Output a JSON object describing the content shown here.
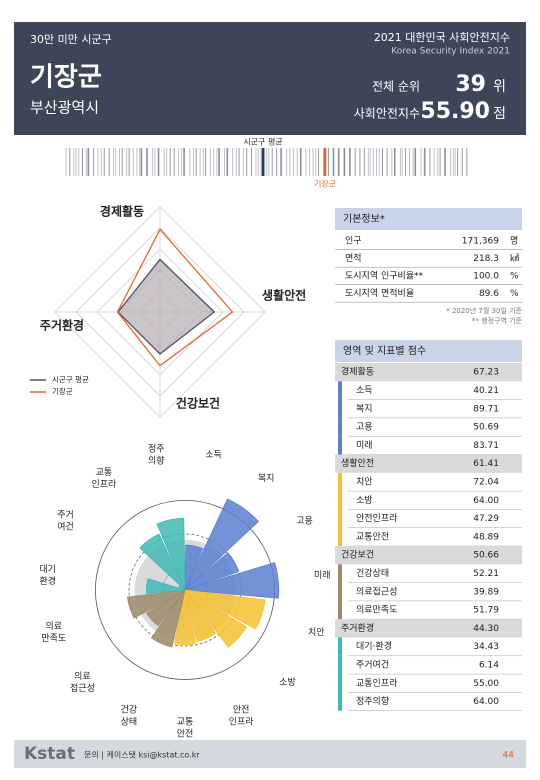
{
  "header": {
    "category": "30만 미만 시군구",
    "title": "2021 대한민국 사회안전지수",
    "subtitle": "Korea Security Index 2021",
    "region": "기장군",
    "province": "부산광역시",
    "rank_label": "전체 순위",
    "rank": "39",
    "rank_unit": "위",
    "score_label": "사회안전지수",
    "score": "55.90",
    "score_unit": "점"
  },
  "distribution": {
    "average_label": "시군구 평균",
    "region_label": "기장군"
  },
  "chart_data": [
    {
      "type": "radar",
      "categories": [
        "경제활동",
        "생활안전",
        "건강보건",
        "주거환경"
      ],
      "rlim": [
        20,
        80
      ],
      "series": [
        {
          "name": "시군구 평균",
          "color": "#4a5162",
          "values": [
            50,
            51,
            44,
            44
          ]
        },
        {
          "name": "기장군",
          "color": "#e8622a",
          "values": [
            67.23,
            61.41,
            50.66,
            44.3
          ]
        }
      ]
    },
    {
      "type": "rose",
      "rlim": [
        0,
        100
      ],
      "categories": [
        [
          "소득"
        ],
        [
          "복지"
        ],
        [
          "고용"
        ],
        [
          "미래"
        ],
        [
          "치안"
        ],
        [
          "소방"
        ],
        [
          "안전",
          "인프라"
        ],
        [
          "교통",
          "안전"
        ],
        [
          "건강",
          "상태"
        ],
        [
          "의료",
          "접근성"
        ],
        [
          "의료",
          "만족도"
        ],
        [
          "대기",
          "환경"
        ],
        [
          "주거",
          "여건"
        ],
        [
          "교통",
          "인프라"
        ],
        [
          "정주",
          "의향"
        ]
      ],
      "values": [
        40.21,
        89.71,
        50.69,
        83.71,
        72.04,
        64,
        47.29,
        48.89,
        52.21,
        39.89,
        51.79,
        34.43,
        6.14,
        55,
        64
      ],
      "colors": [
        "#5b7fd1",
        "#5b7fd1",
        "#5b7fd1",
        "#5b7fd1",
        "#f5c12f",
        "#f5c12f",
        "#f5c12f",
        "#f5c12f",
        "#9c8a6b",
        "#9c8a6b",
        "#9c8a6b",
        "#3fb8b4",
        "#3fb8b4",
        "#3fb8b4",
        "#3fb8b4"
      ]
    }
  ],
  "basic_info": {
    "title": "기본정보*",
    "rows": [
      {
        "label": "인구",
        "value": "171,369",
        "unit": "명"
      },
      {
        "label": "면적",
        "value": "218.3",
        "unit": "㎢"
      },
      {
        "label": "도시지역 인구비율**",
        "value": "100.0",
        "unit": "%"
      },
      {
        "label": "도시지역 면적비율",
        "value": "89.6",
        "unit": "%"
      }
    ],
    "notes": [
      "* 2020년 7월 30일 기준",
      "** 행정구역 기준"
    ]
  },
  "scores": {
    "title": "영역 및 지표별 점수",
    "domains": [
      {
        "name": "경제활동",
        "value": "67.23",
        "color": "#5b7fd1",
        "indicators": [
          {
            "name": "소득",
            "value": "40.21"
          },
          {
            "name": "복지",
            "value": "89.71"
          },
          {
            "name": "고용",
            "value": "50.69"
          },
          {
            "name": "미래",
            "value": "83.71"
          }
        ]
      },
      {
        "name": "생활안전",
        "value": "61.41",
        "color": "#f5c12f",
        "indicators": [
          {
            "name": "치안",
            "value": "72.04"
          },
          {
            "name": "소방",
            "value": "64.00"
          },
          {
            "name": "안전인프라",
            "value": "47.29"
          },
          {
            "name": "교통안전",
            "value": "48.89"
          }
        ]
      },
      {
        "name": "건강보건",
        "value": "50.66",
        "color": "#9c8a6b",
        "indicators": [
          {
            "name": "건강상태",
            "value": "52.21"
          },
          {
            "name": "의료접근성",
            "value": "39.89"
          },
          {
            "name": "의료만족도",
            "value": "51.79"
          }
        ]
      },
      {
        "name": "주거환경",
        "value": "44.30",
        "color": "#3fb8b4",
        "indicators": [
          {
            "name": "대기·환경",
            "value": "34.43"
          },
          {
            "name": "주거여건",
            "value": "6.14"
          },
          {
            "name": "교통인프라",
            "value": "55.00"
          },
          {
            "name": "정주의향",
            "value": "64.00"
          }
        ]
      }
    ]
  },
  "footer": {
    "logo": "Kstat",
    "contact": "문의 | 케이스탯 ksi@kstat.co.kr",
    "page": "44"
  }
}
